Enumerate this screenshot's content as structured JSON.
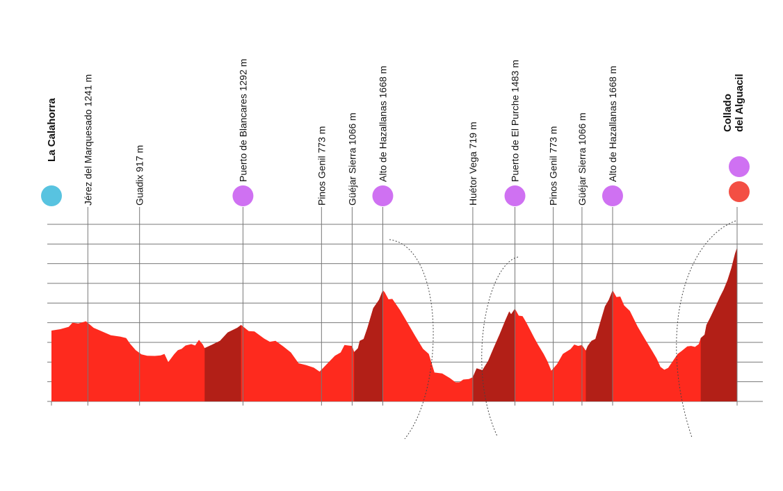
{
  "chart_data": {
    "type": "area",
    "title": "",
    "xlabel": "",
    "ylabel": "",
    "ylim": [
      500,
      2400
    ],
    "grid": true,
    "colors": {
      "profile": "#fe2a1e",
      "climb": "#b21f17",
      "start_marker": "#58c3e0",
      "climb_marker": "#cf71f2",
      "finish_marker": "#f34f44",
      "grid": "#777777",
      "label": "#111111"
    },
    "profile": [
      [
        0.0,
        1260
      ],
      [
        2.3,
        1275
      ],
      [
        4.5,
        1300
      ],
      [
        5.5,
        1345
      ],
      [
        7.0,
        1335
      ],
      [
        9.0,
        1360
      ],
      [
        11.0,
        1290
      ],
      [
        13.0,
        1255
      ],
      [
        15.5,
        1210
      ],
      [
        18.0,
        1195
      ],
      [
        19.5,
        1180
      ],
      [
        20.5,
        1120
      ],
      [
        22.0,
        1050
      ],
      [
        23.5,
        1005
      ],
      [
        25.0,
        990
      ],
      [
        27.0,
        988
      ],
      [
        28.5,
        993
      ],
      [
        29.5,
        1010
      ],
      [
        30.5,
        922
      ],
      [
        32.0,
        1005
      ],
      [
        33.0,
        1050
      ],
      [
        34.0,
        1065
      ],
      [
        35.0,
        1100
      ],
      [
        36.5,
        1115
      ],
      [
        37.5,
        1100
      ],
      [
        38.5,
        1160
      ],
      [
        39.5,
        1110
      ],
      [
        40.0,
        1072
      ],
      [
        42.0,
        1110
      ],
      [
        44.0,
        1150
      ],
      [
        46.0,
        1240
      ],
      [
        48.5,
        1290
      ],
      [
        49.5,
        1320
      ],
      [
        51.5,
        1255
      ],
      [
        53.0,
        1250
      ],
      [
        55.5,
        1175
      ],
      [
        57.0,
        1140
      ],
      [
        58.5,
        1150
      ],
      [
        60.5,
        1090
      ],
      [
        62.5,
        1025
      ],
      [
        64.5,
        910
      ],
      [
        66.5,
        890
      ],
      [
        68.5,
        862
      ],
      [
        70.0,
        820
      ],
      [
        72.0,
        905
      ],
      [
        74.0,
        990
      ],
      [
        75.5,
        1025
      ],
      [
        76.5,
        1105
      ],
      [
        77.5,
        1100
      ],
      [
        78.5,
        1095
      ],
      [
        79.0,
        1030
      ],
      [
        80.0,
        1070
      ],
      [
        80.5,
        1150
      ],
      [
        81.5,
        1170
      ],
      [
        82.5,
        1290
      ],
      [
        84.0,
        1500
      ],
      [
        85.5,
        1590
      ],
      [
        86.5,
        1692
      ],
      [
        87.0,
        1672
      ],
      [
        88.0,
        1595
      ],
      [
        89.0,
        1600
      ],
      [
        91.0,
        1480
      ],
      [
        93.0,
        1340
      ],
      [
        95.0,
        1200
      ],
      [
        97.0,
        1065
      ],
      [
        98.5,
        1010
      ],
      [
        100.0,
        810
      ],
      [
        102.0,
        800
      ],
      [
        104.0,
        750
      ],
      [
        105.5,
        705
      ],
      [
        106.5,
        705
      ],
      [
        107.5,
        735
      ],
      [
        109.0,
        740
      ],
      [
        110.0,
        760
      ],
      [
        111.0,
        855
      ],
      [
        112.5,
        835
      ],
      [
        114.0,
        935
      ],
      [
        115.5,
        1080
      ],
      [
        117.0,
        1220
      ],
      [
        118.5,
        1370
      ],
      [
        119.5,
        1465
      ],
      [
        120.0,
        1435
      ],
      [
        121.0,
        1495
      ],
      [
        122.0,
        1420
      ],
      [
        123.0,
        1415
      ],
      [
        124.0,
        1345
      ],
      [
        126.0,
        1185
      ],
      [
        127.0,
        1110
      ],
      [
        128.5,
        1010
      ],
      [
        129.5,
        930
      ],
      [
        130.5,
        830
      ],
      [
        132.0,
        900
      ],
      [
        133.5,
        1010
      ],
      [
        135.5,
        1060
      ],
      [
        136.5,
        1110
      ],
      [
        137.5,
        1095
      ],
      [
        138.5,
        1105
      ],
      [
        139.5,
        1045
      ],
      [
        140.0,
        1095
      ],
      [
        141.0,
        1150
      ],
      [
        142.0,
        1170
      ],
      [
        143.0,
        1310
      ],
      [
        144.5,
        1520
      ],
      [
        145.5,
        1590
      ],
      [
        146.5,
        1692
      ],
      [
        147.5,
        1620
      ],
      [
        148.5,
        1625
      ],
      [
        149.5,
        1530
      ],
      [
        151.0,
        1470
      ],
      [
        153.0,
        1305
      ],
      [
        155.0,
        1165
      ],
      [
        157.0,
        1030
      ],
      [
        158.0,
        960
      ],
      [
        159.0,
        870
      ],
      [
        160.0,
        840
      ],
      [
        161.0,
        860
      ],
      [
        162.0,
        920
      ],
      [
        163.5,
        1010
      ],
      [
        164.5,
        1040
      ],
      [
        166.0,
        1090
      ],
      [
        167.0,
        1095
      ],
      [
        168.0,
        1085
      ],
      [
        169.0,
        1115
      ],
      [
        169.5,
        1180
      ],
      [
        170.5,
        1215
      ],
      [
        171.0,
        1320
      ],
      [
        172.0,
        1400
      ],
      [
        173.5,
        1530
      ],
      [
        174.5,
        1620
      ],
      [
        175.5,
        1700
      ],
      [
        176.5,
        1800
      ],
      [
        177.5,
        1930
      ],
      [
        178.5,
        2090
      ],
      [
        179.0,
        2150
      ]
    ],
    "climbs": [
      {
        "from": 40.0,
        "to": 49.5
      },
      {
        "from": 79.0,
        "to": 86.5
      },
      {
        "from": 110.0,
        "to": 121.0
      },
      {
        "from": 139.5,
        "to": 146.5
      },
      {
        "from": 169.5,
        "to": 179.0
      }
    ],
    "waypoints": [
      {
        "km": 0.0,
        "label": "La Calahorra",
        "bold": true,
        "marker": "start",
        "line": false
      },
      {
        "km": 9.5,
        "label": "Jérez del Marquesado 1241 m",
        "bold": false,
        "marker": "",
        "line": true
      },
      {
        "km": 23.0,
        "label": "Guadix 917 m",
        "bold": false,
        "marker": "",
        "line": true
      },
      {
        "km": 50.0,
        "label": "Puerto de Blancares 1292 m",
        "bold": false,
        "marker": "climb",
        "line": true
      },
      {
        "km": 70.5,
        "label": "Pinos Genil 773 m",
        "bold": false,
        "marker": "",
        "line": true
      },
      {
        "km": 78.5,
        "label": "Güéjar Sierra 1066 m",
        "bold": false,
        "marker": "",
        "line": true
      },
      {
        "km": 86.5,
        "label": "Alto de Hazallanas 1668 m",
        "bold": false,
        "marker": "climb",
        "line": true
      },
      {
        "km": 110.0,
        "label": "Huétor Vega 719 m",
        "bold": false,
        "marker": "",
        "line": true
      },
      {
        "km": 121.0,
        "label": "Puerto de El Purche 1483 m",
        "bold": false,
        "marker": "climb",
        "line": true
      },
      {
        "km": 131.0,
        "label": "Pinos Genil 773 m",
        "bold": false,
        "marker": "",
        "line": true
      },
      {
        "km": 138.5,
        "label": "Güéjar Sierra 1066 m",
        "bold": false,
        "marker": "",
        "line": true
      },
      {
        "km": 146.5,
        "label": "Alto de Hazallanas 1668 m",
        "bold": false,
        "marker": "climb",
        "line": true
      },
      {
        "km": 179.0,
        "label": "Collado del Alguacil",
        "label_lines": [
          "Collado",
          "del Alguacil"
        ],
        "bold": true,
        "marker": "finish",
        "line": true
      }
    ]
  }
}
